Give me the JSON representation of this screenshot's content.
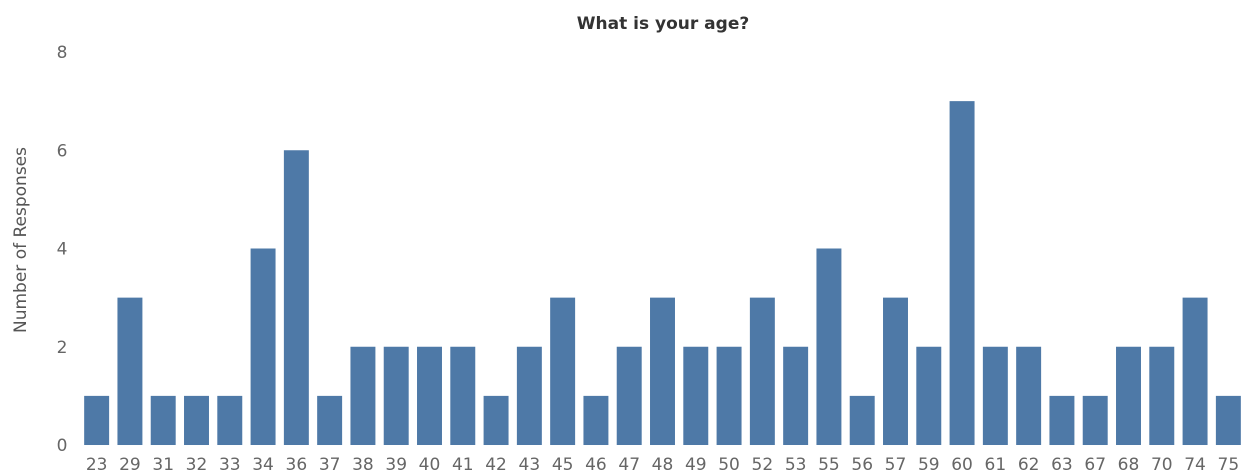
{
  "chart_data": {
    "type": "bar",
    "title": "What is your age?",
    "xlabel": "",
    "ylabel": "Number of Responses",
    "ylim": [
      0,
      8
    ],
    "yticks": [
      0,
      2,
      4,
      6,
      8
    ],
    "grid": false,
    "legend": "none",
    "bar_color": "#4e79a7",
    "categories": [
      "23",
      "29",
      "31",
      "32",
      "33",
      "34",
      "36",
      "37",
      "38",
      "39",
      "40",
      "41",
      "42",
      "43",
      "45",
      "46",
      "47",
      "48",
      "49",
      "50",
      "52",
      "53",
      "55",
      "56",
      "57",
      "59",
      "60",
      "61",
      "62",
      "63",
      "67",
      "68",
      "70",
      "74",
      "75"
    ],
    "values": [
      1,
      3,
      1,
      1,
      1,
      4,
      6,
      1,
      2,
      2,
      2,
      2,
      1,
      2,
      3,
      1,
      2,
      3,
      2,
      2,
      3,
      2,
      4,
      1,
      3,
      2,
      7,
      2,
      2,
      1,
      1,
      2,
      2,
      3,
      1
    ]
  }
}
